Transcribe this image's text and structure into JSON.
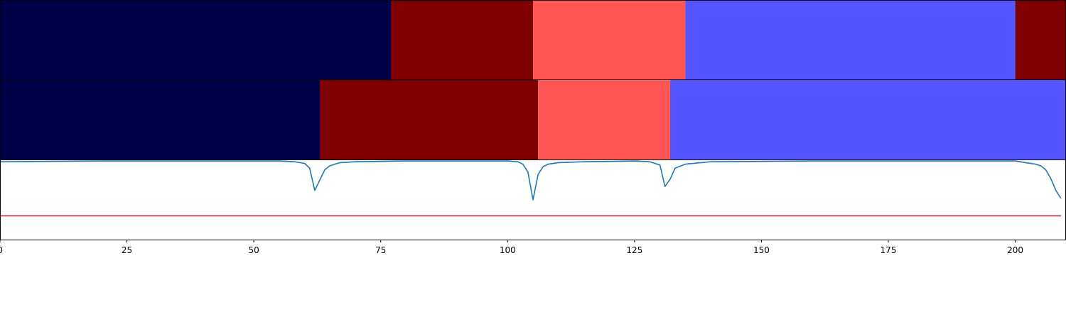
{
  "chart_data": {
    "type": "segmentation",
    "xlim": [
      0,
      210
    ],
    "xticks": [
      0,
      25,
      50,
      75,
      100,
      125,
      150,
      175,
      200
    ],
    "colors": {
      "class_0": "#000048",
      "class_1": "#7f0000",
      "class_2": "#ff5555",
      "class_3": "#5555ff",
      "line": "#1f77b4",
      "threshold": "#d62728"
    },
    "tracks": [
      {
        "segments": [
          {
            "start": 0,
            "end": 77,
            "class": "class_0"
          },
          {
            "start": 77,
            "end": 105,
            "class": "class_1"
          },
          {
            "start": 105,
            "end": 135,
            "class": "class_2"
          },
          {
            "start": 135,
            "end": 200,
            "class": "class_3"
          },
          {
            "start": 200,
            "end": 210,
            "class": "class_1"
          }
        ]
      },
      {
        "segments": [
          {
            "start": 0,
            "end": 63,
            "class": "class_0"
          },
          {
            "start": 63,
            "end": 106,
            "class": "class_1"
          },
          {
            "start": 106,
            "end": 132,
            "class": "class_2"
          },
          {
            "start": 132,
            "end": 210,
            "class": "class_3"
          }
        ]
      }
    ],
    "confidence_panel": {
      "ylim": [
        0,
        1
      ],
      "threshold": 0.3,
      "series": {
        "x": [
          0,
          20,
          40,
          55,
          58,
          60,
          61,
          62,
          63,
          64,
          65,
          67,
          70,
          80,
          100,
          102,
          103,
          104,
          105,
          106,
          107,
          108,
          110,
          115,
          125,
          128,
          129,
          130,
          131,
          132,
          133,
          135,
          140,
          160,
          180,
          195,
          200,
          202,
          204,
          205,
          206,
          207,
          208,
          209
        ],
        "y": [
          0.98,
          0.99,
          0.99,
          0.99,
          0.98,
          0.96,
          0.9,
          0.62,
          0.75,
          0.88,
          0.93,
          0.97,
          0.98,
          0.99,
          0.99,
          0.98,
          0.95,
          0.85,
          0.5,
          0.82,
          0.92,
          0.95,
          0.97,
          0.98,
          0.99,
          0.98,
          0.96,
          0.94,
          0.67,
          0.76,
          0.9,
          0.95,
          0.98,
          0.99,
          0.99,
          0.99,
          0.99,
          0.97,
          0.95,
          0.93,
          0.88,
          0.77,
          0.62,
          0.52
        ]
      }
    }
  }
}
